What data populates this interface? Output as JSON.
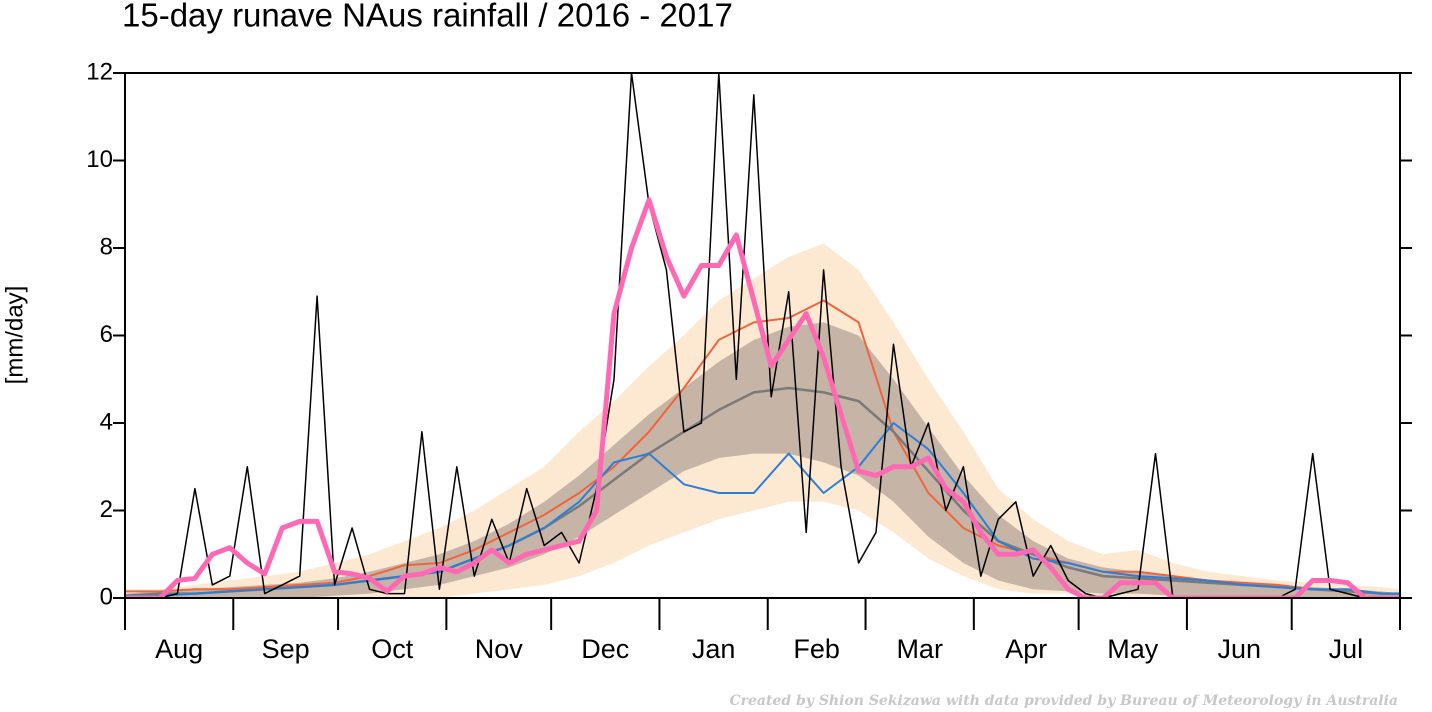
{
  "chart_data": {
    "type": "line",
    "title": "15-day runave NAus rainfall  /  2016 - 2017",
    "y_label": "[mm/day]",
    "credit": "Created by Shion Sekizawa with data provided by Bureau of Meteorology in Australia",
    "xlim": [
      0,
      365
    ],
    "ylim": [
      0,
      12
    ],
    "yticks": [
      0,
      2,
      4,
      6,
      8,
      10,
      12
    ],
    "months": [
      "Aug",
      "Sep",
      "Oct",
      "Nov",
      "Dec",
      "Jan",
      "Feb",
      "Mar",
      "Apr",
      "May",
      "Jun",
      "Jul"
    ],
    "month_starts": [
      0,
      31,
      61,
      92,
      122,
      153,
      184,
      212,
      243,
      273,
      304,
      334,
      365
    ],
    "bands": [
      {
        "color": "#fde9d2",
        "x": [
          0,
          10,
          20,
          30,
          40,
          50,
          60,
          70,
          80,
          90,
          100,
          110,
          120,
          130,
          140,
          150,
          160,
          170,
          180,
          190,
          200,
          210,
          220,
          230,
          240,
          250,
          260,
          270,
          280,
          290,
          300,
          310,
          320,
          330,
          340,
          350,
          360,
          365
        ],
        "lower": [
          0,
          0,
          0,
          0,
          0,
          0,
          0,
          0,
          0,
          0,
          0.1,
          0.2,
          0.3,
          0.5,
          0.8,
          1.2,
          1.5,
          1.8,
          2.0,
          2.2,
          2.2,
          2.0,
          1.5,
          0.9,
          0.5,
          0.2,
          0.1,
          0.1,
          0,
          0,
          0,
          0,
          0,
          0,
          0,
          0,
          0,
          0
        ],
        "upper": [
          0.2,
          0.2,
          0.3,
          0.4,
          0.5,
          0.6,
          0.8,
          1.0,
          1.3,
          1.6,
          2.0,
          2.5,
          3.0,
          3.8,
          4.5,
          5.3,
          6.0,
          6.8,
          7.3,
          7.8,
          8.1,
          7.5,
          6.3,
          5.0,
          3.8,
          2.5,
          1.8,
          1.3,
          1.0,
          1.1,
          0.8,
          0.6,
          0.5,
          0.4,
          0.35,
          0.3,
          0.25,
          0.2
        ]
      },
      {
        "color": "#c6b5a6",
        "x": [
          0,
          10,
          20,
          30,
          40,
          50,
          60,
          70,
          80,
          90,
          100,
          110,
          120,
          130,
          140,
          150,
          160,
          170,
          180,
          190,
          200,
          210,
          220,
          230,
          240,
          250,
          260,
          270,
          280,
          290,
          300,
          310,
          320,
          330,
          340,
          350,
          360,
          365
        ],
        "lower": [
          0,
          0,
          0,
          0,
          0,
          0,
          0.05,
          0.1,
          0.2,
          0.3,
          0.5,
          0.7,
          1.0,
          1.4,
          1.9,
          2.4,
          2.9,
          3.2,
          3.3,
          3.3,
          3.1,
          2.8,
          2.2,
          1.4,
          0.8,
          0.4,
          0.2,
          0.15,
          0.1,
          0.1,
          0.05,
          0.05,
          0,
          0,
          0,
          0,
          0,
          0
        ],
        "upper": [
          0.1,
          0.15,
          0.2,
          0.25,
          0.3,
          0.35,
          0.45,
          0.6,
          0.8,
          1.0,
          1.3,
          1.7,
          2.2,
          2.8,
          3.5,
          4.2,
          4.8,
          5.4,
          5.9,
          6.2,
          6.3,
          6.0,
          5.0,
          3.9,
          2.8,
          1.9,
          1.3,
          0.9,
          0.7,
          0.6,
          0.5,
          0.4,
          0.35,
          0.3,
          0.25,
          0.2,
          0.15,
          0.1
        ]
      }
    ],
    "series": [
      {
        "color": "#f0643c",
        "width": 2,
        "x": [
          0,
          10,
          20,
          30,
          40,
          50,
          60,
          70,
          80,
          90,
          100,
          110,
          120,
          130,
          140,
          150,
          160,
          170,
          180,
          190,
          200,
          210,
          220,
          230,
          240,
          250,
          260,
          270,
          280,
          290,
          300,
          310,
          320,
          330,
          340,
          350,
          360,
          365
        ],
        "values": [
          0.15,
          0.15,
          0.2,
          0.2,
          0.25,
          0.3,
          0.35,
          0.5,
          0.75,
          0.8,
          1.1,
          1.5,
          1.9,
          2.4,
          3.0,
          3.8,
          4.8,
          5.9,
          6.3,
          6.4,
          6.8,
          6.3,
          3.8,
          2.4,
          1.6,
          1.2,
          1.0,
          0.8,
          0.6,
          0.6,
          0.5,
          0.4,
          0.35,
          0.3,
          0.2,
          0.15,
          0.1,
          0.1
        ]
      },
      {
        "color": "#7a7a7a",
        "width": 2.5,
        "x": [
          0,
          10,
          20,
          30,
          40,
          50,
          60,
          70,
          80,
          90,
          100,
          110,
          120,
          130,
          140,
          150,
          160,
          170,
          180,
          190,
          200,
          210,
          220,
          230,
          240,
          250,
          260,
          270,
          280,
          290,
          300,
          310,
          320,
          330,
          340,
          350,
          360,
          365
        ],
        "values": [
          0.05,
          0.1,
          0.1,
          0.15,
          0.2,
          0.25,
          0.3,
          0.4,
          0.5,
          0.6,
          0.9,
          1.2,
          1.6,
          2.1,
          2.7,
          3.3,
          3.8,
          4.3,
          4.7,
          4.8,
          4.7,
          4.5,
          3.8,
          2.9,
          2.0,
          1.3,
          1.0,
          0.7,
          0.5,
          0.45,
          0.4,
          0.35,
          0.3,
          0.25,
          0.2,
          0.15,
          0.1,
          0.1
        ]
      },
      {
        "color": "#2b7fd8",
        "width": 2,
        "x": [
          0,
          10,
          20,
          30,
          40,
          50,
          60,
          70,
          80,
          90,
          100,
          110,
          120,
          130,
          140,
          150,
          160,
          170,
          180,
          190,
          200,
          210,
          220,
          230,
          240,
          250,
          260,
          270,
          280,
          290,
          300,
          310,
          320,
          330,
          340,
          350,
          360,
          365
        ],
        "values": [
          0.05,
          0.05,
          0.1,
          0.15,
          0.2,
          0.25,
          0.3,
          0.4,
          0.5,
          0.6,
          0.9,
          1.2,
          1.6,
          2.2,
          3.1,
          3.3,
          2.6,
          2.4,
          2.4,
          3.3,
          2.4,
          3.0,
          4.0,
          3.4,
          2.4,
          1.3,
          0.9,
          0.8,
          0.6,
          0.5,
          0.45,
          0.4,
          0.3,
          0.25,
          0.2,
          0.2,
          0.1,
          0.1
        ]
      },
      {
        "color": "#000000",
        "width": 1.5,
        "x": [
          0,
          5,
          10,
          15,
          20,
          25,
          30,
          35,
          40,
          45,
          50,
          55,
          60,
          65,
          70,
          75,
          80,
          85,
          90,
          95,
          100,
          105,
          110,
          115,
          120,
          125,
          130,
          135,
          140,
          145,
          150,
          155,
          160,
          165,
          170,
          175,
          180,
          185,
          190,
          195,
          200,
          205,
          210,
          215,
          220,
          225,
          230,
          235,
          240,
          245,
          250,
          255,
          260,
          265,
          270,
          275,
          280,
          285,
          290,
          295,
          300,
          305,
          310,
          315,
          320,
          325,
          330,
          335,
          340,
          345,
          350,
          355,
          360,
          365
        ],
        "values": [
          0,
          0,
          0,
          0.1,
          2.5,
          0.3,
          0.5,
          3.0,
          0.1,
          0.3,
          0.5,
          6.9,
          0.3,
          1.6,
          0.2,
          0.1,
          0.1,
          3.8,
          0.2,
          3.0,
          0.5,
          1.8,
          0.8,
          2.5,
          1.2,
          1.5,
          0.8,
          2.5,
          5.0,
          12,
          9.0,
          7.5,
          3.8,
          4.0,
          12,
          5.0,
          11.5,
          4.6,
          7.0,
          1.5,
          7.5,
          3.0,
          0.8,
          1.5,
          5.8,
          3.0,
          4.0,
          2.0,
          3.0,
          0.5,
          1.8,
          2.2,
          0.5,
          1.2,
          0.4,
          0.1,
          0,
          0.1,
          0.2,
          3.3,
          0,
          0,
          0,
          0,
          0,
          0,
          0,
          0.2,
          3.3,
          0.2,
          0.1,
          0,
          0,
          0
        ]
      },
      {
        "color": "#ff69b4",
        "width": 5,
        "x": [
          0,
          5,
          10,
          15,
          20,
          25,
          30,
          35,
          40,
          45,
          50,
          55,
          60,
          65,
          70,
          75,
          80,
          85,
          90,
          95,
          100,
          105,
          110,
          115,
          120,
          125,
          130,
          135,
          140,
          145,
          150,
          155,
          160,
          165,
          170,
          175,
          180,
          185,
          190,
          195,
          200,
          205,
          210,
          215,
          220,
          225,
          230,
          235,
          240,
          245,
          250,
          255,
          260,
          265,
          270,
          275,
          280,
          285,
          290,
          295,
          300,
          305,
          310,
          315,
          320,
          325,
          330,
          335,
          340,
          345,
          350,
          355,
          360,
          365
        ],
        "values": [
          0,
          0,
          0,
          0.4,
          0.45,
          1.0,
          1.15,
          0.8,
          0.55,
          1.6,
          1.75,
          1.75,
          0.6,
          0.55,
          0.45,
          0.15,
          0.5,
          0.55,
          0.7,
          0.6,
          0.8,
          1.1,
          0.8,
          1.0,
          1.1,
          1.2,
          1.3,
          2.0,
          6.5,
          8.0,
          9.1,
          7.8,
          6.9,
          7.6,
          7.6,
          8.3,
          6.8,
          5.3,
          5.9,
          6.5,
          5.5,
          4.2,
          2.9,
          2.8,
          3.0,
          3.0,
          3.2,
          2.5,
          2.2,
          1.5,
          1.0,
          1.0,
          1.1,
          0.7,
          0.2,
          0,
          0,
          0.35,
          0.35,
          0.35,
          0,
          0,
          0,
          0,
          0,
          0,
          0,
          0,
          0.4,
          0.4,
          0.35,
          0,
          0,
          0
        ]
      }
    ]
  }
}
